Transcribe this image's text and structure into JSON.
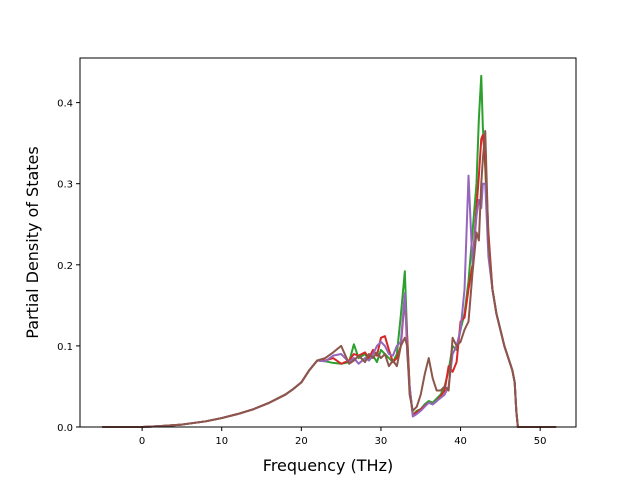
{
  "chart_data": {
    "type": "line",
    "xlabel": "Frequency (THz)",
    "ylabel": "Partial Density of States",
    "xlim": [
      -7.8,
      54.5
    ],
    "ylim": [
      0,
      0.455
    ],
    "xticks": [
      0,
      10,
      20,
      30,
      40,
      50
    ],
    "yticks": [
      0.0,
      0.1,
      0.2,
      0.3,
      0.4
    ],
    "xtick_labels": [
      "0",
      "10",
      "20",
      "30",
      "40",
      "50"
    ],
    "ytick_labels": [
      "0.0",
      "0.1",
      "0.2",
      "0.3",
      "0.4"
    ],
    "grid": false,
    "legend": "none",
    "series": [
      {
        "color": "#2ca02c",
        "x": [
          -5,
          0,
          2,
          5,
          8,
          10,
          12,
          14,
          16,
          18,
          19,
          20,
          21,
          22,
          23,
          24,
          25,
          26,
          26.6,
          27.2,
          28,
          28.5,
          29,
          29.5,
          30,
          30.5,
          31,
          31.5,
          32,
          32.5,
          33.0,
          33.3,
          33.6,
          34,
          34.5,
          35,
          35.5,
          36,
          36.5,
          37,
          37.5,
          38,
          38.5,
          39,
          39.5,
          40,
          40.5,
          41,
          41.5,
          42,
          42.3,
          42.6,
          42.8,
          43.1,
          43.5,
          44,
          44.5,
          45,
          45.5,
          46,
          46.5,
          46.8,
          47.0,
          47.2,
          48,
          52
        ],
        "y": [
          0,
          0,
          0.001,
          0.003,
          0.007,
          0.011,
          0.016,
          0.022,
          0.03,
          0.04,
          0.047,
          0.055,
          0.07,
          0.082,
          0.081,
          0.079,
          0.078,
          0.08,
          0.102,
          0.085,
          0.09,
          0.082,
          0.088,
          0.08,
          0.095,
          0.09,
          0.085,
          0.08,
          0.09,
          0.138,
          0.192,
          0.11,
          0.05,
          0.015,
          0.02,
          0.022,
          0.028,
          0.032,
          0.03,
          0.035,
          0.04,
          0.05,
          0.07,
          0.1,
          0.095,
          0.12,
          0.14,
          0.18,
          0.24,
          0.3,
          0.38,
          0.433,
          0.37,
          0.32,
          0.22,
          0.17,
          0.14,
          0.12,
          0.1,
          0.085,
          0.07,
          0.055,
          0.02,
          0,
          0,
          0
        ]
      },
      {
        "color": "#d62728",
        "x": [
          -5,
          0,
          2,
          5,
          8,
          10,
          12,
          14,
          16,
          18,
          19,
          20,
          21,
          22,
          23,
          24,
          25,
          26,
          26.6,
          27.2,
          28,
          28.5,
          29,
          29.5,
          30,
          30.5,
          31,
          31.5,
          32,
          32.5,
          33.0,
          33.3,
          33.6,
          34,
          34.5,
          35,
          35.5,
          36,
          36.5,
          37,
          37.5,
          38,
          38.5,
          39,
          39.5,
          40,
          40.5,
          41,
          41.5,
          42,
          42.3,
          42.6,
          42.8,
          43.1,
          43.5,
          44,
          44.5,
          45,
          45.5,
          46,
          46.5,
          46.8,
          47.0,
          47.2,
          48,
          52
        ],
        "y": [
          0,
          0,
          0.001,
          0.003,
          0.007,
          0.011,
          0.016,
          0.022,
          0.03,
          0.04,
          0.047,
          0.055,
          0.07,
          0.082,
          0.082,
          0.085,
          0.078,
          0.082,
          0.09,
          0.088,
          0.092,
          0.085,
          0.095,
          0.088,
          0.11,
          0.112,
          0.095,
          0.08,
          0.085,
          0.1,
          0.16,
          0.11,
          0.05,
          0.015,
          0.018,
          0.022,
          0.026,
          0.03,
          0.028,
          0.032,
          0.038,
          0.045,
          0.075,
          0.068,
          0.08,
          0.13,
          0.135,
          0.17,
          0.2,
          0.27,
          0.31,
          0.355,
          0.36,
          0.33,
          0.24,
          0.17,
          0.14,
          0.12,
          0.1,
          0.085,
          0.07,
          0.055,
          0.02,
          0,
          0,
          0
        ]
      },
      {
        "color": "#9467bd",
        "x": [
          -5,
          0,
          2,
          5,
          8,
          10,
          12,
          14,
          16,
          18,
          19,
          20,
          21,
          22,
          23,
          24,
          25,
          26,
          26.6,
          27.2,
          28,
          28.5,
          29,
          29.5,
          30,
          30.5,
          31,
          31.5,
          32,
          32.5,
          33.0,
          33.3,
          33.6,
          34,
          34.5,
          35,
          35.5,
          36,
          36.5,
          37,
          37.5,
          38,
          38.5,
          39,
          39.5,
          40,
          40.5,
          41,
          41.5,
          42,
          42.3,
          42.6,
          42.8,
          43.1,
          43.5,
          44,
          44.5,
          45,
          45.5,
          46,
          46.5,
          46.8,
          47.0,
          47.2,
          48,
          52
        ],
        "y": [
          0,
          0,
          0.001,
          0.003,
          0.007,
          0.011,
          0.016,
          0.022,
          0.03,
          0.04,
          0.047,
          0.055,
          0.07,
          0.082,
          0.081,
          0.088,
          0.09,
          0.08,
          0.085,
          0.078,
          0.085,
          0.082,
          0.09,
          0.1,
          0.105,
          0.1,
          0.09,
          0.088,
          0.1,
          0.105,
          0.165,
          0.09,
          0.05,
          0.013,
          0.016,
          0.02,
          0.025,
          0.03,
          0.028,
          0.032,
          0.036,
          0.04,
          0.05,
          0.09,
          0.1,
          0.12,
          0.17,
          0.31,
          0.2,
          0.26,
          0.28,
          0.27,
          0.3,
          0.3,
          0.21,
          0.17,
          0.14,
          0.12,
          0.1,
          0.085,
          0.07,
          0.055,
          0.02,
          0,
          0,
          0
        ]
      },
      {
        "color": "#8c564b",
        "x": [
          -5,
          0,
          2,
          5,
          8,
          10,
          12,
          14,
          16,
          18,
          19,
          20,
          21,
          22,
          23,
          24,
          25,
          26,
          26.6,
          27.2,
          28,
          28.5,
          29,
          29.5,
          30,
          30.5,
          31,
          31.5,
          32,
          32.5,
          33.0,
          33.3,
          33.6,
          34,
          34.5,
          35,
          35.5,
          36,
          36.5,
          37,
          37.5,
          38,
          38.5,
          39,
          39.5,
          40,
          40.5,
          41,
          41.5,
          42,
          42.3,
          42.6,
          42.8,
          43.1,
          43.5,
          44,
          44.5,
          45,
          45.5,
          46,
          46.5,
          46.8,
          47.0,
          47.2,
          48,
          52
        ],
        "y": [
          0,
          0,
          0.001,
          0.003,
          0.007,
          0.011,
          0.016,
          0.022,
          0.03,
          0.04,
          0.047,
          0.055,
          0.07,
          0.082,
          0.085,
          0.092,
          0.1,
          0.078,
          0.082,
          0.088,
          0.08,
          0.09,
          0.085,
          0.092,
          0.085,
          0.09,
          0.075,
          0.082,
          0.075,
          0.1,
          0.11,
          0.1,
          0.04,
          0.02,
          0.025,
          0.04,
          0.065,
          0.085,
          0.06,
          0.045,
          0.045,
          0.05,
          0.045,
          0.11,
          0.1,
          0.105,
          0.12,
          0.13,
          0.19,
          0.24,
          0.23,
          0.3,
          0.33,
          0.365,
          0.23,
          0.17,
          0.14,
          0.12,
          0.1,
          0.085,
          0.07,
          0.055,
          0.02,
          0,
          0,
          0
        ]
      }
    ]
  }
}
